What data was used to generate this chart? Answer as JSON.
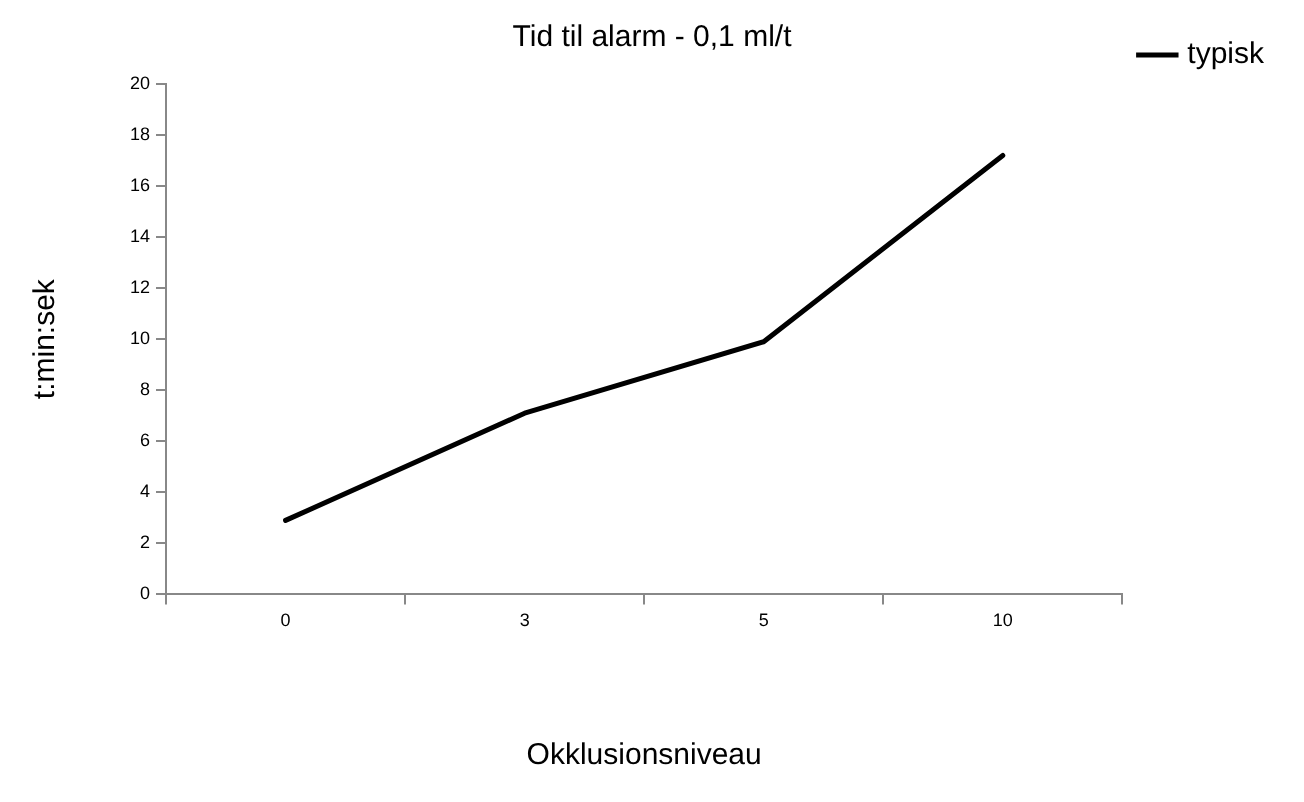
{
  "chart_data": {
    "type": "line",
    "title": "Tid til alarm - 0,1 ml/t",
    "xlabel": "Okklusionsniveau",
    "ylabel": "t:min:sek",
    "categories": [
      "0",
      "3",
      "5",
      "10"
    ],
    "series": [
      {
        "name": "typisk",
        "color": "#000000",
        "values": [
          2.9,
          7.1,
          9.9,
          17.2
        ]
      }
    ],
    "ylim": [
      0,
      20
    ],
    "yticks": [
      0,
      2,
      4,
      6,
      8,
      10,
      12,
      14,
      16,
      18,
      20
    ],
    "grid": false,
    "legend": "top right",
    "marker": "none",
    "line_style": "solid"
  }
}
